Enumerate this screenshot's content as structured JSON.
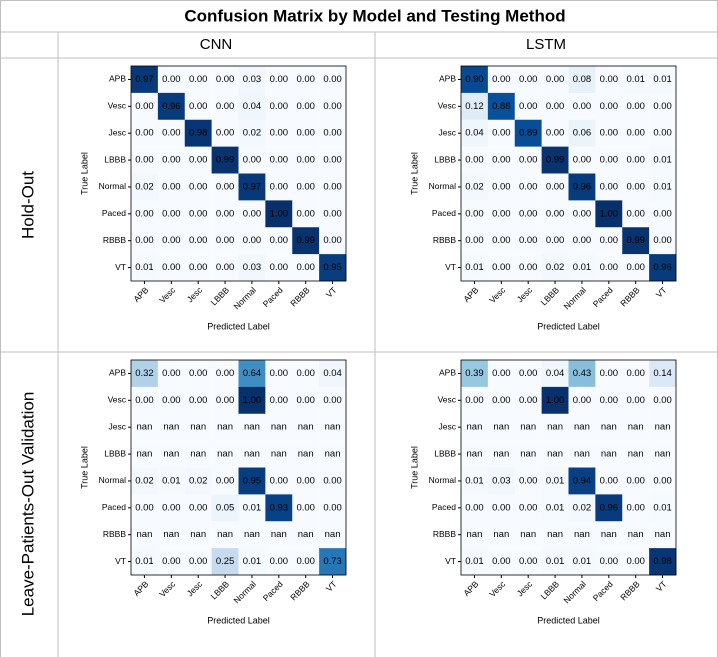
{
  "table": {
    "title": "Confusion Matrix by Model and Testing Method",
    "columns": [
      "CNN",
      "LSTM"
    ],
    "rows": [
      "Hold-Out",
      "Leave-Patients-Out Validation"
    ]
  },
  "chart_data": [
    {
      "type": "heatmap",
      "colormap": "Blues",
      "x_label": "Predicted Label",
      "y_label": "True Label",
      "categories": [
        "APB",
        "Vesc",
        "Jesc",
        "LBBB",
        "Normal",
        "Paced",
        "RBBB",
        "VT"
      ],
      "values": [
        [
          0.97,
          0,
          0,
          0,
          0.03,
          0,
          0,
          0
        ],
        [
          0,
          0.96,
          0,
          0,
          0.04,
          0,
          0,
          0
        ],
        [
          0,
          0,
          0.98,
          0,
          0.02,
          0,
          0,
          0
        ],
        [
          0,
          0,
          0,
          0.99,
          0,
          0,
          0,
          0
        ],
        [
          0.02,
          0,
          0,
          0,
          0.97,
          0,
          0,
          0
        ],
        [
          0,
          0,
          0,
          0,
          0,
          1,
          0,
          0
        ],
        [
          0,
          0,
          0,
          0,
          0,
          0,
          0.99,
          0
        ],
        [
          0.01,
          0,
          0,
          0,
          0.03,
          0,
          0,
          0.95
        ]
      ],
      "value_labels": [
        [
          "0.97",
          "0.00",
          "0.00",
          "0.00",
          "0.03",
          "0.00",
          "0.00",
          "0.00"
        ],
        [
          "0.00",
          "0.96",
          "0.00",
          "0.00",
          "0.04",
          "0.00",
          "0.00",
          "0.00"
        ],
        [
          "0.00",
          "0.00",
          "0.98",
          "0.00",
          "0.02",
          "0.00",
          "0.00",
          "0.00"
        ],
        [
          "0.00",
          "0.00",
          "0.00",
          "0.99",
          "0.00",
          "0.00",
          "0.00",
          "0.00"
        ],
        [
          "0.02",
          "0.00",
          "0.00",
          "0.00",
          "0.97",
          "0.00",
          "0.00",
          "0.00"
        ],
        [
          "0.00",
          "0.00",
          "0.00",
          "0.00",
          "0.00",
          "1.00",
          "0.00",
          "0.00"
        ],
        [
          "0.00",
          "0.00",
          "0.00",
          "0.00",
          "0.00",
          "0.00",
          "0.99",
          "0.00"
        ],
        [
          "0.01",
          "0.00",
          "0.00",
          "0.00",
          "0.03",
          "0.00",
          "0.00",
          "0.95"
        ]
      ]
    },
    {
      "type": "heatmap",
      "colormap": "Blues",
      "x_label": "Predicted Label",
      "y_label": "True Label",
      "categories": [
        "APB",
        "Vesc",
        "Jesc",
        "LBBB",
        "Normal",
        "Paced",
        "RBBB",
        "VT"
      ],
      "values": [
        [
          0.9,
          0,
          0,
          0,
          0.08,
          0,
          0.01,
          0.01
        ],
        [
          0.12,
          0.88,
          0,
          0,
          0,
          0,
          0,
          0
        ],
        [
          0.04,
          0,
          0.89,
          0,
          0.06,
          0,
          0,
          0
        ],
        [
          0,
          0,
          0,
          0.99,
          0,
          0,
          0,
          0.01
        ],
        [
          0.02,
          0,
          0,
          0,
          0.96,
          0,
          0,
          0.01
        ],
        [
          0,
          0,
          0,
          0,
          0,
          1,
          0,
          0
        ],
        [
          0,
          0,
          0,
          0,
          0,
          0,
          0.99,
          0
        ],
        [
          0.01,
          0,
          0,
          0.02,
          0.01,
          0,
          0,
          0.96
        ]
      ],
      "value_labels": [
        [
          "0.90",
          "0.00",
          "0.00",
          "0.00",
          "0.08",
          "0.00",
          "0.01",
          "0.01"
        ],
        [
          "0.12",
          "0.88",
          "0.00",
          "0.00",
          "0.00",
          "0.00",
          "0.00",
          "0.00"
        ],
        [
          "0.04",
          "0.00",
          "0.89",
          "0.00",
          "0.06",
          "0.00",
          "0.00",
          "0.00"
        ],
        [
          "0.00",
          "0.00",
          "0.00",
          "0.99",
          "0.00",
          "0.00",
          "0.00",
          "0.01"
        ],
        [
          "0.02",
          "0.00",
          "0.00",
          "0.00",
          "0.96",
          "0.00",
          "0.00",
          "0.01"
        ],
        [
          "0.00",
          "0.00",
          "0.00",
          "0.00",
          "0.00",
          "1.00",
          "0.00",
          "0.00"
        ],
        [
          "0.00",
          "0.00",
          "0.00",
          "0.00",
          "0.00",
          "0.00",
          "0.99",
          "0.00"
        ],
        [
          "0.01",
          "0.00",
          "0.00",
          "0.02",
          "0.01",
          "0.00",
          "0.00",
          "0.96"
        ]
      ]
    },
    {
      "type": "heatmap",
      "colormap": "Blues",
      "x_label": "Predicted Label",
      "y_label": "True Label",
      "categories": [
        "APB",
        "Vesc",
        "Jesc",
        "LBBB",
        "Normal",
        "Paced",
        "RBBB",
        "VT"
      ],
      "values": [
        [
          0.32,
          0,
          0,
          0,
          0.64,
          0,
          0,
          0.04
        ],
        [
          0,
          0,
          0,
          0,
          1,
          0,
          0,
          0
        ],
        [
          null,
          null,
          null,
          null,
          null,
          null,
          null,
          null
        ],
        [
          null,
          null,
          null,
          null,
          null,
          null,
          null,
          null
        ],
        [
          0.02,
          0.01,
          0.02,
          0,
          0.95,
          0,
          0,
          0
        ],
        [
          0,
          0,
          0,
          0.05,
          0.01,
          0.93,
          0,
          0
        ],
        [
          null,
          null,
          null,
          null,
          null,
          null,
          null,
          null
        ],
        [
          0.01,
          0,
          0,
          0.25,
          0.01,
          0,
          0,
          0.73
        ]
      ],
      "value_labels": [
        [
          "0.32",
          "0.00",
          "0.00",
          "0.00",
          "0.64",
          "0.00",
          "0.00",
          "0.04"
        ],
        [
          "0.00",
          "0.00",
          "0.00",
          "0.00",
          "1.00",
          "0.00",
          "0.00",
          "0.00"
        ],
        [
          "nan",
          "nan",
          "nan",
          "nan",
          "nan",
          "nan",
          "nan",
          "nan"
        ],
        [
          "nan",
          "nan",
          "nan",
          "nan",
          "nan",
          "nan",
          "nan",
          "nan"
        ],
        [
          "0.02",
          "0.01",
          "0.02",
          "0.00",
          "0.95",
          "0.00",
          "0.00",
          "0.00"
        ],
        [
          "0.00",
          "0.00",
          "0.00",
          "0.05",
          "0.01",
          "0.93",
          "0.00",
          "0.00"
        ],
        [
          "nan",
          "nan",
          "nan",
          "nan",
          "nan",
          "nan",
          "nan",
          "nan"
        ],
        [
          "0.01",
          "0.00",
          "0.00",
          "0.25",
          "0.01",
          "0.00",
          "0.00",
          "0.73"
        ]
      ]
    },
    {
      "type": "heatmap",
      "colormap": "Blues",
      "x_label": "Predicted Label",
      "y_label": "True Label",
      "categories": [
        "APB",
        "Vesc",
        "Jesc",
        "LBBB",
        "Normal",
        "Paced",
        "RBBB",
        "VT"
      ],
      "values": [
        [
          0.39,
          0,
          0,
          0.04,
          0.43,
          0,
          0,
          0.14
        ],
        [
          0,
          0,
          0,
          1,
          0,
          0,
          0,
          0
        ],
        [
          null,
          null,
          null,
          null,
          null,
          null,
          null,
          null
        ],
        [
          null,
          null,
          null,
          null,
          null,
          null,
          null,
          null
        ],
        [
          0.01,
          0.03,
          0,
          0.01,
          0.94,
          0,
          0,
          0
        ],
        [
          0,
          0,
          0,
          0.01,
          0.02,
          0.96,
          0,
          0.01
        ],
        [
          null,
          null,
          null,
          null,
          null,
          null,
          null,
          null
        ],
        [
          0.01,
          0,
          0,
          0.01,
          0.01,
          0,
          0,
          0.98
        ]
      ],
      "value_labels": [
        [
          "0.39",
          "0.00",
          "0.00",
          "0.04",
          "0.43",
          "0.00",
          "0.00",
          "0.14"
        ],
        [
          "0.00",
          "0.00",
          "0.00",
          "1.00",
          "0.00",
          "0.00",
          "0.00",
          "0.00"
        ],
        [
          "nan",
          "nan",
          "nan",
          "nan",
          "nan",
          "nan",
          "nan",
          "nan"
        ],
        [
          "nan",
          "nan",
          "nan",
          "nan",
          "nan",
          "nan",
          "nan",
          "nan"
        ],
        [
          "0.01",
          "0.03",
          "0.00",
          "0.01",
          "0.94",
          "0.00",
          "0.00",
          "0.00"
        ],
        [
          "0.00",
          "0.00",
          "0.00",
          "0.01",
          "0.02",
          "0.96",
          "0.00",
          "0.01"
        ],
        [
          "nan",
          "nan",
          "nan",
          "nan",
          "nan",
          "nan",
          "nan",
          "nan"
        ],
        [
          "0.01",
          "0.00",
          "0.00",
          "0.01",
          "0.01",
          "0.00",
          "0.00",
          "0.98"
        ]
      ]
    }
  ]
}
